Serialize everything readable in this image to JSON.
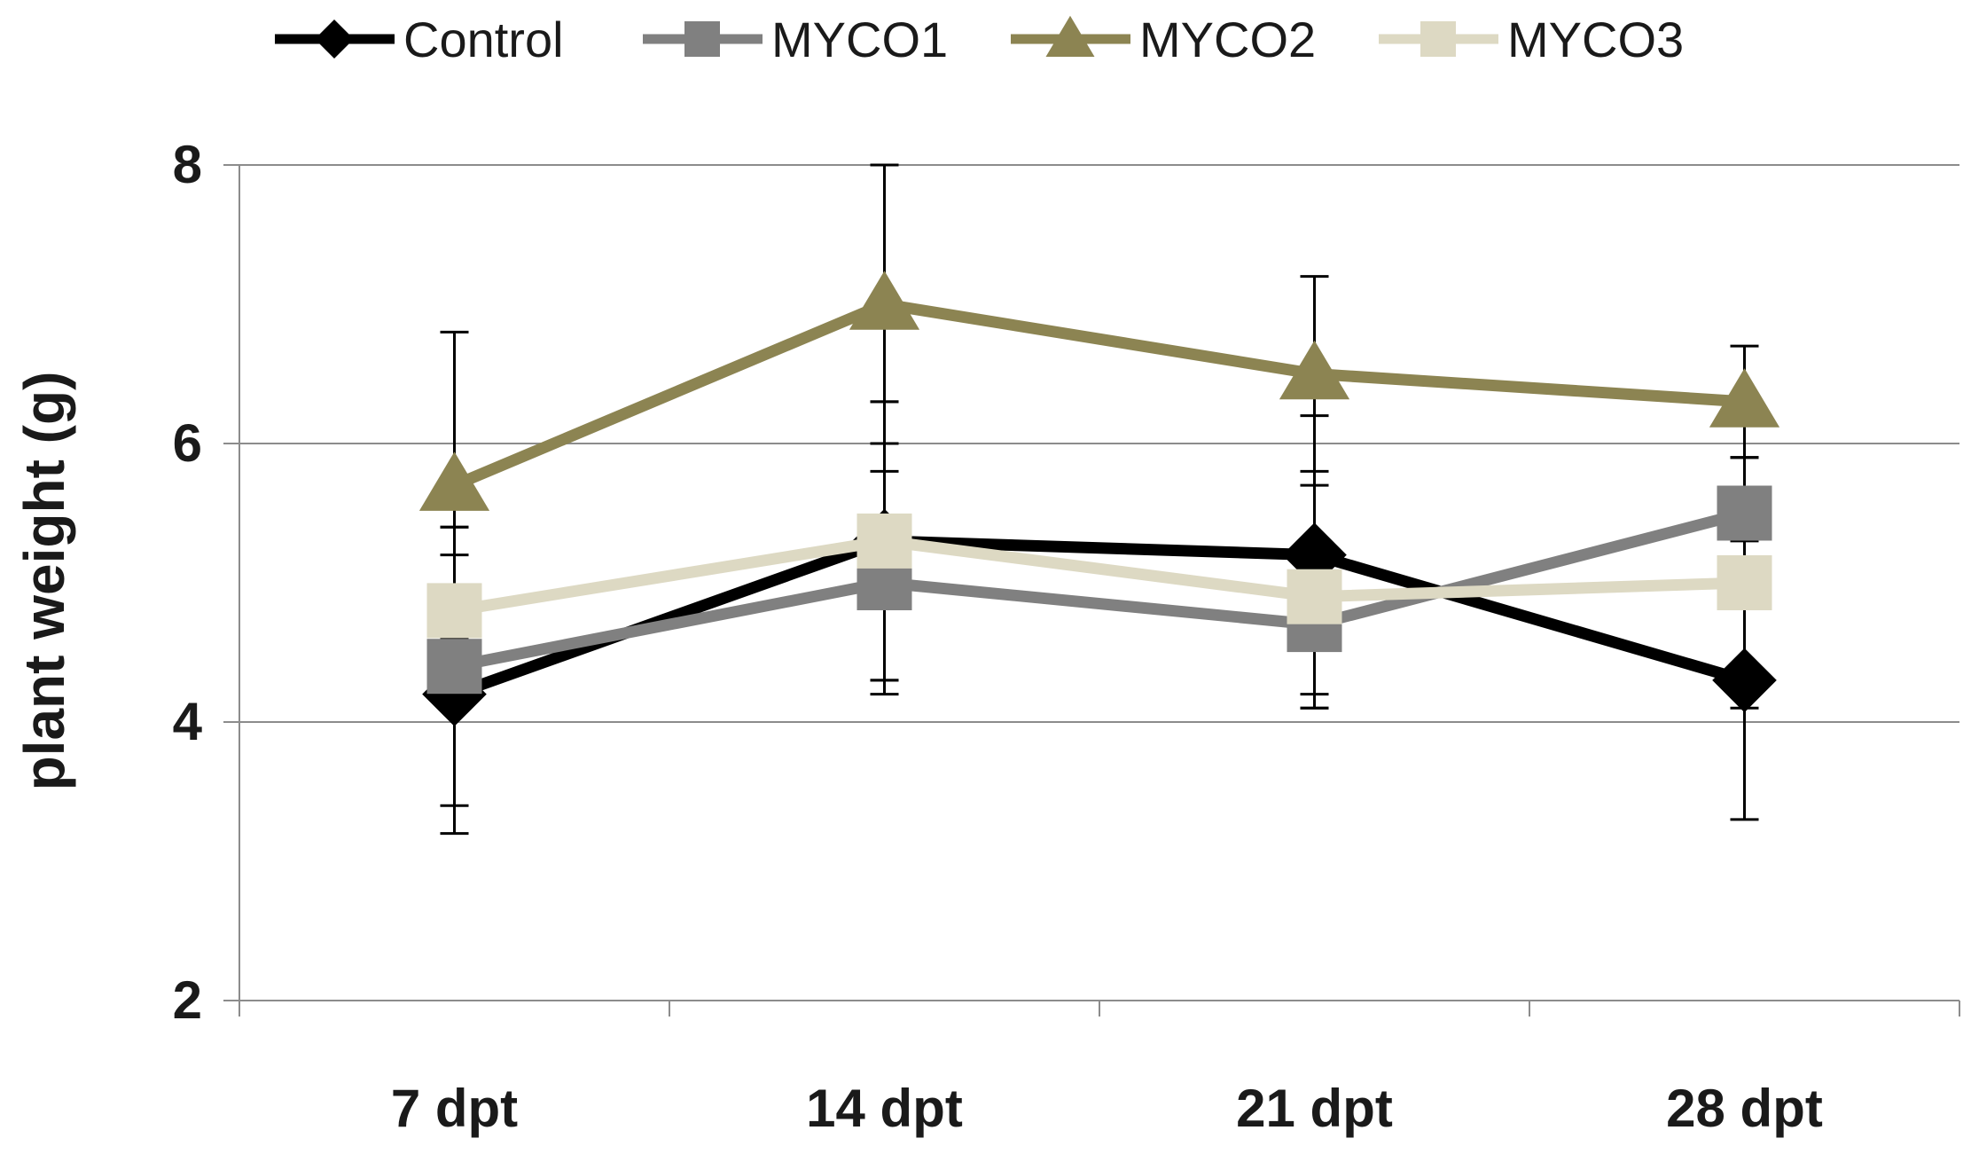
{
  "chart_data": {
    "type": "line",
    "title": "",
    "xlabel": "",
    "ylabel": "plant weight (g)",
    "categories": [
      "7 dpt",
      "14 dpt",
      "21 dpt",
      "28 dpt"
    ],
    "ylim": [
      2,
      8
    ],
    "yticks": [
      2,
      4,
      6,
      8
    ],
    "grid": true,
    "legend_position": "top",
    "series": [
      {
        "name": "Control",
        "color": "#000000",
        "marker": "diamond",
        "values": [
          4.2,
          5.3,
          5.2,
          4.3
        ],
        "errors": [
          1.0,
          1.0,
          1.0,
          1.0
        ]
      },
      {
        "name": "MYCO1",
        "color": "#808080",
        "marker": "square",
        "values": [
          4.4,
          5.0,
          4.7,
          5.5
        ],
        "errors": [
          1.0,
          0.8,
          0.6,
          0.4
        ]
      },
      {
        "name": "MYCO2",
        "color": "#8c8452",
        "marker": "triangle",
        "values": [
          5.7,
          7.0,
          6.5,
          6.3
        ],
        "errors": [
          1.1,
          1.0,
          0.7,
          0.4
        ]
      },
      {
        "name": "MYCO3",
        "color": "#ddd9c3",
        "marker": "square",
        "values": [
          4.8,
          5.3,
          4.9,
          5.0
        ],
        "errors": [
          0.6,
          1.0,
          0.8,
          0.9
        ]
      }
    ]
  }
}
